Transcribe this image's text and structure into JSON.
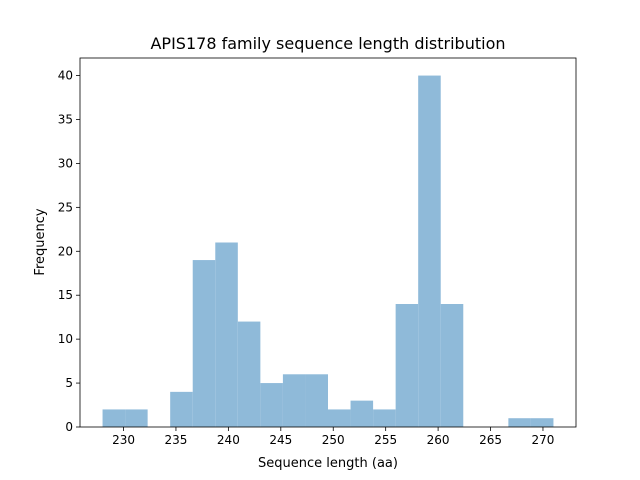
{
  "chart_data": {
    "type": "bar",
    "subtype": "histogram",
    "title": "APIS178 family sequence length distribution",
    "xlabel": "Sequence length (aa)",
    "ylabel": "Frequency",
    "bin_range": [
      228,
      271
    ],
    "bin_count": 20,
    "values": [
      2,
      2,
      0,
      4,
      19,
      21,
      12,
      5,
      6,
      6,
      2,
      3,
      2,
      14,
      40,
      14,
      0,
      0,
      1,
      1
    ],
    "xlim": [
      225.85,
      273.15
    ],
    "ylim": [
      0,
      42
    ],
    "xticks": [
      "230",
      "235",
      "240",
      "245",
      "250",
      "255",
      "260",
      "265",
      "270"
    ],
    "yticks": [
      "0",
      "5",
      "10",
      "15",
      "20",
      "25",
      "30",
      "35",
      "40"
    ],
    "bar_color": "#8fbad9",
    "grid": false,
    "legend": "none"
  }
}
